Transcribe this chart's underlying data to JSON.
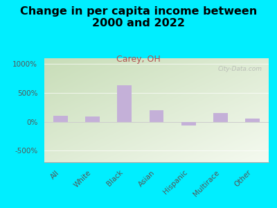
{
  "title": "Change in per capita income between\n2000 and 2022",
  "subtitle": "Carey, OH",
  "categories": [
    "All",
    "White",
    "Black",
    "Asian",
    "Hispanic",
    "Multirace",
    "Other"
  ],
  "values": [
    100,
    90,
    630,
    200,
    -60,
    150,
    60
  ],
  "bar_color": "#c4b0d8",
  "background_outer": "#00eeff",
  "background_plot_top_left": "#c8ddb8",
  "background_plot_bottom_right": "#f5f8f0",
  "yticks": [
    -500,
    0,
    500,
    1000
  ],
  "ylim": [
    -700,
    1100
  ],
  "title_fontsize": 11.5,
  "subtitle_fontsize": 9,
  "subtitle_color": "#b05050",
  "watermark": "City-Data.com",
  "ytick_fontsize": 7.5,
  "xtick_fontsize": 7.5
}
